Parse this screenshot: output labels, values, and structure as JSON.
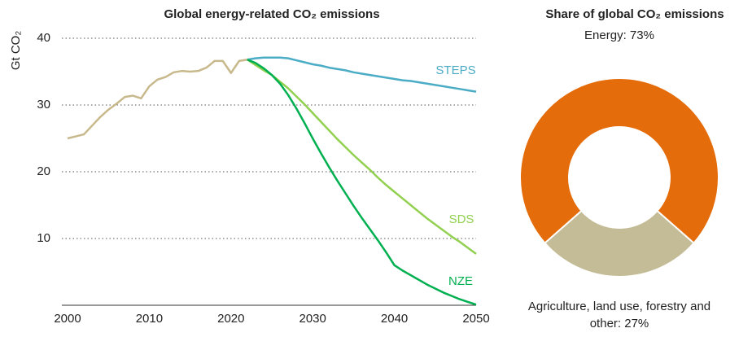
{
  "chart_data": [
    {
      "type": "line",
      "title": "Global energy-related CO₂ emissions",
      "ylabel": "Gt CO₂",
      "x": [
        2000,
        2001,
        2002,
        2003,
        2004,
        2005,
        2006,
        2007,
        2008,
        2009,
        2010,
        2011,
        2012,
        2013,
        2014,
        2015,
        2016,
        2017,
        2018,
        2019,
        2020,
        2021,
        2022,
        2023,
        2024,
        2025,
        2026,
        2027,
        2028,
        2029,
        2030,
        2031,
        2032,
        2033,
        2034,
        2035,
        2036,
        2037,
        2038,
        2039,
        2040,
        2041,
        2042,
        2043,
        2044,
        2045,
        2046,
        2047,
        2048,
        2049,
        2050
      ],
      "xlim": [
        2000,
        2050
      ],
      "xticks": [
        2000,
        2010,
        2020,
        2030,
        2040,
        2050
      ],
      "ylim": [
        0,
        40
      ],
      "yticks": [
        10,
        20,
        30,
        40
      ],
      "grid": true,
      "series": [
        {
          "color": "#c8b98c",
          "values": [
            25,
            25.3,
            25.6,
            26.9,
            28.2,
            29.3,
            30.2,
            31.2,
            31.4,
            31,
            32.8,
            33.8,
            34.2,
            34.9,
            35.1,
            35,
            35.1,
            35.6,
            36.6,
            36.6,
            34.8,
            36.6,
            36.8,
            null,
            null,
            null,
            null,
            null,
            null,
            null,
            null,
            null,
            null,
            null,
            null,
            null,
            null,
            null,
            null,
            null,
            null,
            null,
            null,
            null,
            null,
            null,
            null,
            null,
            null,
            null,
            null
          ]
        },
        {
          "name": "STEPS",
          "color": "#4bacc6",
          "values": [
            null,
            null,
            null,
            null,
            null,
            null,
            null,
            null,
            null,
            null,
            null,
            null,
            null,
            null,
            null,
            null,
            null,
            null,
            null,
            null,
            null,
            null,
            36.8,
            37.0,
            37.1,
            37.1,
            37.1,
            37.0,
            36.7,
            36.4,
            36.1,
            35.9,
            35.6,
            35.4,
            35.2,
            34.9,
            34.7,
            34.5,
            34.3,
            34.1,
            33.9,
            33.7,
            33.6,
            33.4,
            33.2,
            33.0,
            32.8,
            32.6,
            32.4,
            32.2,
            32.0
          ]
        },
        {
          "name": "SDS",
          "color": "#92d050",
          "values": [
            null,
            null,
            null,
            null,
            null,
            null,
            null,
            null,
            null,
            null,
            null,
            null,
            null,
            null,
            null,
            null,
            null,
            null,
            null,
            null,
            null,
            null,
            36.8,
            36,
            35.2,
            34.5,
            33.5,
            32.5,
            31.3,
            30.1,
            28.8,
            27.5,
            26.2,
            24.9,
            23.7,
            22.5,
            21.4,
            20.3,
            19.1,
            18.0,
            17.0,
            16.0,
            15.0,
            14.0,
            13.0,
            12.1,
            11.2,
            10.3,
            9.5,
            8.6,
            7.7
          ]
        },
        {
          "name": "NZE",
          "color": "#00b050",
          "values": [
            null,
            null,
            null,
            null,
            null,
            null,
            null,
            null,
            null,
            null,
            null,
            null,
            null,
            null,
            null,
            null,
            null,
            null,
            null,
            null,
            null,
            null,
            36.8,
            36.3,
            35.5,
            34.5,
            33.2,
            31.5,
            29.5,
            27.3,
            25.0,
            22.8,
            20.7,
            18.7,
            16.8,
            14.9,
            13.1,
            11.4,
            9.7,
            7.9,
            6.0,
            5.2,
            4.5,
            3.8,
            3.1,
            2.5,
            1.9,
            1.4,
            0.9,
            0.5,
            0.1
          ]
        }
      ]
    },
    {
      "type": "donut",
      "title": "Share of global CO₂ emissions",
      "labels": [
        "Energy: 73%",
        "Agriculture, land use, forestry and other: 27%"
      ],
      "values": [
        73,
        27
      ],
      "colors": [
        "#e46c0a",
        "#c4bc96"
      ]
    }
  ]
}
